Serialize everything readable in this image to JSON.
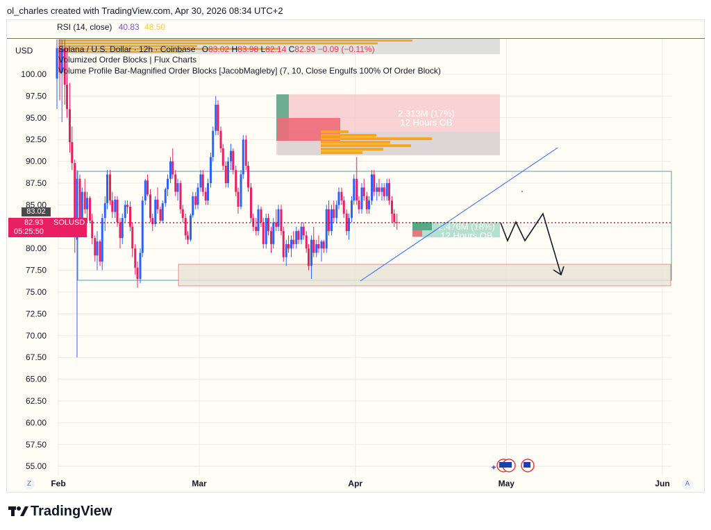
{
  "header": {
    "text": "ol_charles created with TradingView.com, Apr 30, 2026 08:34 UTC+2"
  },
  "rsi": {
    "label": "RSI (14, close)",
    "value1": "40.83",
    "value2": "48.50",
    "value1_color": "#7e57c2",
    "value2_color": "#f2c94c"
  },
  "axis_currency": "USD",
  "legend": {
    "symbol": "Solana / U.S. Dollar · 12h · Coinbase",
    "o_label": "O",
    "o": "83.02",
    "h_label": "H",
    "h": "83.98",
    "l_label": "L",
    "l": "82.14",
    "c_label": "C",
    "c": "82.93",
    "change": "−0.09 (−0.11%)",
    "indicator1": "Volumized Order Blocks | Flux Charts",
    "indicator2": "Volume Profile Bar-Magnified Order Blocks [JacobMagleby] (7, 10, Close Engulfs 100% Of Order Block)"
  },
  "badges": {
    "prev_close": "83.02",
    "last": "82.93",
    "symbol": "SOLUSD",
    "countdown": "05:25:50"
  },
  "annotations": {
    "upper_ob_volume": "2.313M (17%)",
    "upper_ob_tf": "12 Hours OB",
    "lower_ob_volume": "2.476M (18%)",
    "lower_ob_tf": "12 Hours OB"
  },
  "footer": {
    "z_button": "Z",
    "a_button": "A",
    "brand": "TradingView"
  },
  "colors": {
    "up": "#2962ff",
    "down": "#e91e63",
    "bear_ob": "#f8c8cc",
    "bull_ob": "#a8dbc9",
    "range_box": "#4aa3a8",
    "trendline": "#2962ff"
  },
  "chart_data": {
    "type": "candlestick",
    "title": "Solana / U.S. Dollar · 12h · Coinbase",
    "ylabel": "USD",
    "ylim": [
      53.75,
      101.25
    ],
    "y_ticks": [
      "100.00",
      "97.50",
      "95.00",
      "92.50",
      "90.00",
      "87.50",
      "85.00",
      "82.50",
      "80.00",
      "77.50",
      "75.00",
      "72.50",
      "70.00",
      "67.50",
      "65.00",
      "62.50",
      "60.00",
      "57.50",
      "55.00"
    ],
    "x_ticks": [
      "Feb",
      "Mar",
      "Apr",
      "May",
      "Jun"
    ],
    "x_tick_dates": [
      "2026-02-01",
      "2026-03-01",
      "2026-04-01",
      "2026-05-01",
      "2026-06-01"
    ],
    "x_range": [
      "2026-02-01",
      "2026-06-01"
    ],
    "candles": [
      {
        "date": "2026-02-01",
        "o": 99.5,
        "h": 104.0,
        "l": 96.0,
        "c": 103.0
      },
      {
        "date": "2026-02-01",
        "o": 103.0,
        "h": 104.0,
        "l": 97.0,
        "c": 100.2
      },
      {
        "date": "2026-02-02",
        "o": 100.2,
        "h": 104.0,
        "l": 94.5,
        "c": 103.0
      },
      {
        "date": "2026-02-02",
        "o": 103.0,
        "h": 104.0,
        "l": 96.5,
        "c": 98.8
      },
      {
        "date": "2026-02-03",
        "o": 98.8,
        "h": 103.0,
        "l": 95.0,
        "c": 96.0
      },
      {
        "date": "2026-02-03",
        "o": 96.0,
        "h": 99.0,
        "l": 91.0,
        "c": 92.2
      },
      {
        "date": "2026-02-04",
        "o": 92.2,
        "h": 94.0,
        "l": 89.0,
        "c": 89.8
      },
      {
        "date": "2026-02-04",
        "o": 89.8,
        "h": 90.2,
        "l": 79.5,
        "c": 81.5
      },
      {
        "date": "2026-02-05",
        "o": 81.0,
        "h": 89.0,
        "l": 67.5,
        "c": 88.0
      },
      {
        "date": "2026-02-05",
        "o": 88.0,
        "h": 88.5,
        "l": 82.0,
        "c": 83.0
      },
      {
        "date": "2026-02-06",
        "o": 83.0,
        "h": 87.0,
        "l": 82.0,
        "c": 86.5
      },
      {
        "date": "2026-02-06",
        "o": 86.5,
        "h": 88.0,
        "l": 84.0,
        "c": 84.5
      },
      {
        "date": "2026-02-07",
        "o": 84.5,
        "h": 86.5,
        "l": 83.0,
        "c": 85.8
      },
      {
        "date": "2026-02-07",
        "o": 85.8,
        "h": 86.0,
        "l": 83.0,
        "c": 83.2
      },
      {
        "date": "2026-02-08",
        "o": 83.2,
        "h": 84.0,
        "l": 80.5,
        "c": 81.2
      },
      {
        "date": "2026-02-08",
        "o": 81.2,
        "h": 81.5,
        "l": 78.5,
        "c": 79.2
      },
      {
        "date": "2026-02-09",
        "o": 79.2,
        "h": 82.0,
        "l": 77.5,
        "c": 80.8
      },
      {
        "date": "2026-02-09",
        "o": 80.8,
        "h": 81.0,
        "l": 78.0,
        "c": 78.5
      },
      {
        "date": "2026-02-10",
        "o": 78.5,
        "h": 84.0,
        "l": 77.5,
        "c": 83.5
      },
      {
        "date": "2026-02-10",
        "o": 83.5,
        "h": 86.0,
        "l": 82.0,
        "c": 85.2
      },
      {
        "date": "2026-02-11",
        "o": 85.2,
        "h": 89.0,
        "l": 84.5,
        "c": 88.5
      },
      {
        "date": "2026-02-11",
        "o": 88.5,
        "h": 89.0,
        "l": 85.0,
        "c": 85.5
      },
      {
        "date": "2026-02-12",
        "o": 85.5,
        "h": 86.5,
        "l": 83.5,
        "c": 84.2
      },
      {
        "date": "2026-02-12",
        "o": 84.2,
        "h": 86.0,
        "l": 83.5,
        "c": 85.6
      },
      {
        "date": "2026-02-13",
        "o": 85.6,
        "h": 86.0,
        "l": 82.5,
        "c": 83.0
      },
      {
        "date": "2026-02-13",
        "o": 83.0,
        "h": 83.5,
        "l": 80.0,
        "c": 81.2
      },
      {
        "date": "2026-02-14",
        "o": 81.2,
        "h": 84.0,
        "l": 80.5,
        "c": 83.5
      },
      {
        "date": "2026-02-14",
        "o": 83.5,
        "h": 85.5,
        "l": 83.0,
        "c": 85.0
      },
      {
        "date": "2026-02-15",
        "o": 85.0,
        "h": 85.5,
        "l": 84.0,
        "c": 84.8
      },
      {
        "date": "2026-02-15",
        "o": 84.8,
        "h": 85.4,
        "l": 82.0,
        "c": 82.5
      },
      {
        "date": "2026-02-16",
        "o": 82.5,
        "h": 83.0,
        "l": 79.0,
        "c": 80.0
      },
      {
        "date": "2026-02-16",
        "o": 80.0,
        "h": 80.5,
        "l": 77.0,
        "c": 77.8
      },
      {
        "date": "2026-02-17",
        "o": 77.8,
        "h": 78.5,
        "l": 75.5,
        "c": 76.5
      },
      {
        "date": "2026-02-17",
        "o": 76.5,
        "h": 80.0,
        "l": 76.0,
        "c": 79.5
      },
      {
        "date": "2026-02-18",
        "o": 79.5,
        "h": 86.0,
        "l": 79.0,
        "c": 85.5
      },
      {
        "date": "2026-02-18",
        "o": 85.5,
        "h": 88.0,
        "l": 85.0,
        "c": 87.8
      },
      {
        "date": "2026-02-19",
        "o": 87.8,
        "h": 88.5,
        "l": 86.0,
        "c": 86.2
      },
      {
        "date": "2026-02-19",
        "o": 86.2,
        "h": 86.8,
        "l": 83.0,
        "c": 83.5
      },
      {
        "date": "2026-02-20",
        "o": 83.5,
        "h": 84.0,
        "l": 82.0,
        "c": 82.8
      },
      {
        "date": "2026-02-20",
        "o": 82.8,
        "h": 86.0,
        "l": 82.5,
        "c": 85.6
      },
      {
        "date": "2026-02-21",
        "o": 85.6,
        "h": 87.0,
        "l": 84.0,
        "c": 84.5
      },
      {
        "date": "2026-02-21",
        "o": 84.5,
        "h": 84.8,
        "l": 83.0,
        "c": 83.2
      },
      {
        "date": "2026-02-22",
        "o": 83.2,
        "h": 85.5,
        "l": 83.0,
        "c": 85.2
      },
      {
        "date": "2026-02-22",
        "o": 85.2,
        "h": 87.0,
        "l": 84.8,
        "c": 86.8
      },
      {
        "date": "2026-02-23",
        "o": 86.8,
        "h": 88.5,
        "l": 86.0,
        "c": 88.0
      },
      {
        "date": "2026-02-23",
        "o": 88.0,
        "h": 90.5,
        "l": 87.5,
        "c": 90.0
      },
      {
        "date": "2026-02-24",
        "o": 90.0,
        "h": 91.5,
        "l": 88.0,
        "c": 88.5
      },
      {
        "date": "2026-02-24",
        "o": 88.5,
        "h": 89.0,
        "l": 86.0,
        "c": 86.5
      },
      {
        "date": "2026-02-25",
        "o": 86.5,
        "h": 88.0,
        "l": 85.5,
        "c": 87.5
      },
      {
        "date": "2026-02-25",
        "o": 87.5,
        "h": 87.8,
        "l": 84.0,
        "c": 84.5
      },
      {
        "date": "2026-02-26",
        "o": 84.5,
        "h": 85.0,
        "l": 83.0,
        "c": 83.5
      },
      {
        "date": "2026-02-26",
        "o": 83.5,
        "h": 84.0,
        "l": 81.0,
        "c": 81.5
      },
      {
        "date": "2026-02-27",
        "o": 81.5,
        "h": 82.0,
        "l": 80.5,
        "c": 81.0
      },
      {
        "date": "2026-02-27",
        "o": 81.0,
        "h": 84.0,
        "l": 80.8,
        "c": 83.8
      },
      {
        "date": "2026-02-28",
        "o": 83.8,
        "h": 86.5,
        "l": 83.5,
        "c": 86.0
      },
      {
        "date": "2026-02-28",
        "o": 86.0,
        "h": 86.5,
        "l": 84.5,
        "c": 85.0
      },
      {
        "date": "2026-03-01",
        "o": 85.0,
        "h": 87.5,
        "l": 84.5,
        "c": 87.0
      },
      {
        "date": "2026-03-01",
        "o": 87.0,
        "h": 89.0,
        "l": 86.5,
        "c": 88.5
      },
      {
        "date": "2026-03-02",
        "o": 88.5,
        "h": 89.0,
        "l": 86.0,
        "c": 86.5
      },
      {
        "date": "2026-03-02",
        "o": 86.5,
        "h": 87.0,
        "l": 85.0,
        "c": 85.5
      },
      {
        "date": "2026-03-03",
        "o": 85.5,
        "h": 88.0,
        "l": 85.0,
        "c": 87.5
      },
      {
        "date": "2026-03-03",
        "o": 87.5,
        "h": 91.0,
        "l": 87.0,
        "c": 90.5
      },
      {
        "date": "2026-03-04",
        "o": 90.5,
        "h": 94.0,
        "l": 90.0,
        "c": 93.5
      },
      {
        "date": "2026-03-04",
        "o": 93.5,
        "h": 97.5,
        "l": 93.0,
        "c": 96.5
      },
      {
        "date": "2026-03-05",
        "o": 96.5,
        "h": 97.0,
        "l": 93.0,
        "c": 93.5
      },
      {
        "date": "2026-03-05",
        "o": 93.5,
        "h": 94.0,
        "l": 91.0,
        "c": 91.5
      },
      {
        "date": "2026-03-06",
        "o": 91.5,
        "h": 92.0,
        "l": 89.0,
        "c": 89.5
      },
      {
        "date": "2026-03-06",
        "o": 89.5,
        "h": 90.0,
        "l": 87.0,
        "c": 87.5
      },
      {
        "date": "2026-03-07",
        "o": 87.5,
        "h": 90.5,
        "l": 87.0,
        "c": 90.0
      },
      {
        "date": "2026-03-07",
        "o": 90.0,
        "h": 92.0,
        "l": 89.0,
        "c": 91.2
      },
      {
        "date": "2026-03-08",
        "o": 91.2,
        "h": 91.5,
        "l": 88.5,
        "c": 89.0
      },
      {
        "date": "2026-03-08",
        "o": 89.0,
        "h": 89.5,
        "l": 86.0,
        "c": 86.5
      },
      {
        "date": "2026-03-09",
        "o": 86.5,
        "h": 87.0,
        "l": 84.0,
        "c": 84.8
      },
      {
        "date": "2026-03-09",
        "o": 84.8,
        "h": 89.0,
        "l": 84.5,
        "c": 88.5
      },
      {
        "date": "2026-03-10",
        "o": 88.5,
        "h": 93.0,
        "l": 88.0,
        "c": 92.5
      },
      {
        "date": "2026-03-10",
        "o": 92.5,
        "h": 93.0,
        "l": 89.0,
        "c": 89.5
      },
      {
        "date": "2026-03-11",
        "o": 89.5,
        "h": 90.0,
        "l": 86.5,
        "c": 87.0
      },
      {
        "date": "2026-03-11",
        "o": 87.0,
        "h": 87.5,
        "l": 83.0,
        "c": 83.5
      },
      {
        "date": "2026-03-12",
        "o": 83.5,
        "h": 84.0,
        "l": 82.0,
        "c": 82.5
      },
      {
        "date": "2026-03-12",
        "o": 82.5,
        "h": 83.5,
        "l": 81.5,
        "c": 82.0
      },
      {
        "date": "2026-03-13",
        "o": 82.0,
        "h": 85.0,
        "l": 81.5,
        "c": 84.5
      },
      {
        "date": "2026-03-13",
        "o": 84.5,
        "h": 84.8,
        "l": 82.5,
        "c": 83.0
      },
      {
        "date": "2026-03-14",
        "o": 83.0,
        "h": 83.5,
        "l": 80.0,
        "c": 80.5
      },
      {
        "date": "2026-03-14",
        "o": 80.5,
        "h": 84.0,
        "l": 80.0,
        "c": 83.5
      },
      {
        "date": "2026-03-15",
        "o": 83.5,
        "h": 84.0,
        "l": 81.5,
        "c": 82.0
      },
      {
        "date": "2026-03-15",
        "o": 82.0,
        "h": 82.5,
        "l": 79.5,
        "c": 80.5
      },
      {
        "date": "2026-03-16",
        "o": 80.5,
        "h": 83.5,
        "l": 80.0,
        "c": 83.0
      },
      {
        "date": "2026-03-16",
        "o": 83.0,
        "h": 84.5,
        "l": 82.0,
        "c": 82.5
      },
      {
        "date": "2026-03-17",
        "o": 82.5,
        "h": 85.0,
        "l": 82.0,
        "c": 84.5
      },
      {
        "date": "2026-03-17",
        "o": 84.5,
        "h": 85.0,
        "l": 81.5,
        "c": 82.0
      },
      {
        "date": "2026-03-18",
        "o": 82.0,
        "h": 82.5,
        "l": 78.5,
        "c": 79.0
      },
      {
        "date": "2026-03-18",
        "o": 79.0,
        "h": 81.0,
        "l": 78.0,
        "c": 80.5
      },
      {
        "date": "2026-03-19",
        "o": 80.5,
        "h": 81.5,
        "l": 79.5,
        "c": 80.0
      },
      {
        "date": "2026-03-19",
        "o": 80.0,
        "h": 81.5,
        "l": 79.0,
        "c": 81.0
      },
      {
        "date": "2026-03-20",
        "o": 81.0,
        "h": 82.0,
        "l": 80.0,
        "c": 80.5
      },
      {
        "date": "2026-03-20",
        "o": 80.5,
        "h": 82.5,
        "l": 80.0,
        "c": 82.0
      },
      {
        "date": "2026-03-21",
        "o": 82.0,
        "h": 82.2,
        "l": 80.5,
        "c": 81.0
      },
      {
        "date": "2026-03-21",
        "o": 81.0,
        "h": 83.0,
        "l": 80.5,
        "c": 82.5
      },
      {
        "date": "2026-03-22",
        "o": 82.5,
        "h": 83.0,
        "l": 81.0,
        "c": 81.5
      },
      {
        "date": "2026-03-22",
        "o": 81.5,
        "h": 82.0,
        "l": 79.5,
        "c": 80.0
      },
      {
        "date": "2026-03-23",
        "o": 80.0,
        "h": 80.5,
        "l": 77.5,
        "c": 78.0
      },
      {
        "date": "2026-03-23",
        "o": 78.0,
        "h": 81.5,
        "l": 76.5,
        "c": 81.0
      },
      {
        "date": "2026-03-24",
        "o": 81.0,
        "h": 82.5,
        "l": 79.0,
        "c": 79.5
      },
      {
        "date": "2026-03-24",
        "o": 79.5,
        "h": 81.0,
        "l": 79.0,
        "c": 80.5
      },
      {
        "date": "2026-03-25",
        "o": 80.5,
        "h": 81.5,
        "l": 79.5,
        "c": 80.0
      },
      {
        "date": "2026-03-25",
        "o": 80.0,
        "h": 81.0,
        "l": 78.5,
        "c": 80.8
      },
      {
        "date": "2026-03-26",
        "o": 80.8,
        "h": 81.0,
        "l": 79.5,
        "c": 80.0
      },
      {
        "date": "2026-03-26",
        "o": 80.0,
        "h": 85.0,
        "l": 79.5,
        "c": 84.5
      },
      {
        "date": "2026-03-27",
        "o": 84.5,
        "h": 85.5,
        "l": 81.5,
        "c": 82.0
      },
      {
        "date": "2026-03-27",
        "o": 82.0,
        "h": 85.0,
        "l": 81.5,
        "c": 84.5
      },
      {
        "date": "2026-03-28",
        "o": 84.5,
        "h": 85.5,
        "l": 83.0,
        "c": 83.5
      },
      {
        "date": "2026-03-28",
        "o": 83.5,
        "h": 85.5,
        "l": 83.0,
        "c": 85.0
      },
      {
        "date": "2026-03-29",
        "o": 85.0,
        "h": 87.0,
        "l": 84.5,
        "c": 86.5
      },
      {
        "date": "2026-03-29",
        "o": 86.5,
        "h": 87.0,
        "l": 85.0,
        "c": 85.5
      },
      {
        "date": "2026-03-30",
        "o": 85.5,
        "h": 86.0,
        "l": 83.5,
        "c": 84.0
      },
      {
        "date": "2026-03-30",
        "o": 84.0,
        "h": 84.5,
        "l": 81.5,
        "c": 82.0
      },
      {
        "date": "2026-03-31",
        "o": 82.0,
        "h": 84.0,
        "l": 81.0,
        "c": 83.5
      },
      {
        "date": "2026-03-31",
        "o": 83.5,
        "h": 86.0,
        "l": 83.0,
        "c": 85.5
      },
      {
        "date": "2026-04-01",
        "o": 85.5,
        "h": 88.5,
        "l": 85.0,
        "c": 88.0
      },
      {
        "date": "2026-04-01",
        "o": 88.0,
        "h": 90.5,
        "l": 85.0,
        "c": 85.5
      },
      {
        "date": "2026-04-02",
        "o": 85.5,
        "h": 86.0,
        "l": 84.0,
        "c": 84.5
      },
      {
        "date": "2026-04-02",
        "o": 84.5,
        "h": 87.5,
        "l": 84.0,
        "c": 87.0
      },
      {
        "date": "2026-04-03",
        "o": 87.0,
        "h": 88.0,
        "l": 85.5,
        "c": 86.0
      },
      {
        "date": "2026-04-03",
        "o": 86.0,
        "h": 86.5,
        "l": 84.0,
        "c": 84.5
      },
      {
        "date": "2026-04-04",
        "o": 84.5,
        "h": 86.0,
        "l": 84.0,
        "c": 85.5
      },
      {
        "date": "2026-04-04",
        "o": 85.5,
        "h": 89.0,
        "l": 85.0,
        "c": 88.5
      },
      {
        "date": "2026-04-05",
        "o": 88.5,
        "h": 89.0,
        "l": 86.0,
        "c": 86.5
      },
      {
        "date": "2026-04-05",
        "o": 86.5,
        "h": 87.5,
        "l": 85.5,
        "c": 87.0
      },
      {
        "date": "2026-04-06",
        "o": 87.0,
        "h": 88.0,
        "l": 86.0,
        "c": 86.5
      },
      {
        "date": "2026-04-06",
        "o": 86.5,
        "h": 87.5,
        "l": 85.5,
        "c": 87.0
      },
      {
        "date": "2026-04-07",
        "o": 87.0,
        "h": 87.5,
        "l": 85.5,
        "c": 86.0
      },
      {
        "date": "2026-04-07",
        "o": 86.0,
        "h": 88.0,
        "l": 85.5,
        "c": 87.5
      },
      {
        "date": "2026-04-08",
        "o": 87.5,
        "h": 88.0,
        "l": 85.0,
        "c": 85.5
      },
      {
        "date": "2026-04-08",
        "o": 85.5,
        "h": 86.0,
        "l": 83.0,
        "c": 84.0
      },
      {
        "date": "2026-04-09",
        "o": 84.0,
        "h": 84.5,
        "l": 82.5,
        "c": 83.02
      },
      {
        "date": "2026-04-09",
        "o": 83.02,
        "h": 83.98,
        "l": 82.14,
        "c": 82.93
      }
    ],
    "annotations": [
      "Volumized Order Blocks | Flux Charts",
      "Volume Profile Bar-Magnified Order Blocks [JacobMagleby] (7, 10, Close Engulfs 100% Of Order Block)"
    ]
  }
}
